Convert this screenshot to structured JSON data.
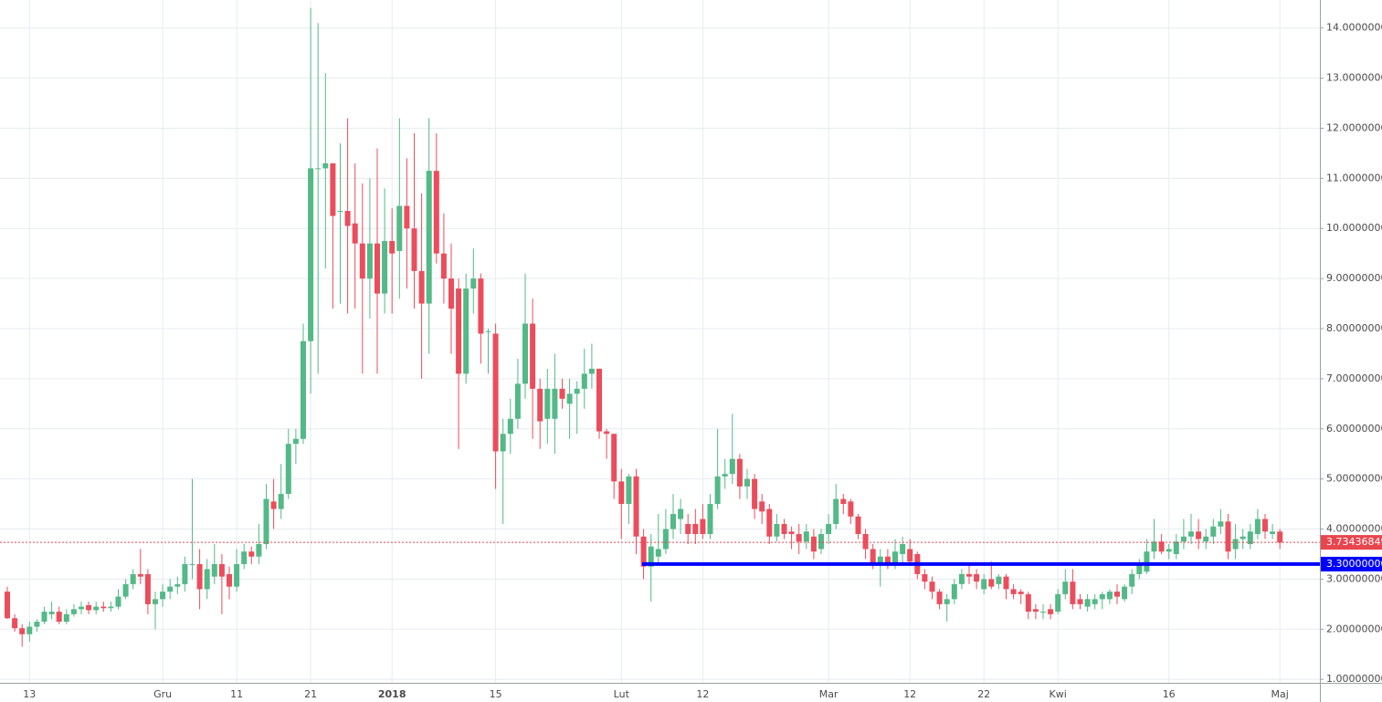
{
  "chart_data": {
    "type": "candlestick",
    "up_color": "#53b987",
    "down_color": "#eb4d5c",
    "grid": true,
    "ylim": [
      0.93,
      14.56
    ],
    "yticks": [
      {
        "value": 1,
        "label": "1.00000000"
      },
      {
        "value": 2,
        "label": "2.00000000"
      },
      {
        "value": 3,
        "label": "3.00000000"
      },
      {
        "value": 4,
        "label": "4.00000000"
      },
      {
        "value": 5,
        "label": "5.00000000"
      },
      {
        "value": 6,
        "label": "6.00000000"
      },
      {
        "value": 7,
        "label": "7.00000000"
      },
      {
        "value": 8,
        "label": "8.00000000"
      },
      {
        "value": 9,
        "label": "9.00000000"
      },
      {
        "value": 10,
        "label": "10.00000000"
      },
      {
        "value": 11,
        "label": "11.00000000"
      },
      {
        "value": 12,
        "label": "12.00000000"
      },
      {
        "value": 13,
        "label": "13.00000000"
      },
      {
        "value": 14,
        "label": "14.00000000"
      }
    ],
    "categories": [
      null,
      null,
      null,
      "13",
      null,
      null,
      null,
      null,
      null,
      null,
      null,
      null,
      null,
      null,
      null,
      null,
      null,
      null,
      null,
      null,
      null,
      "Gru",
      null,
      null,
      null,
      null,
      null,
      null,
      null,
      null,
      null,
      "11",
      null,
      null,
      null,
      null,
      null,
      null,
      null,
      null,
      null,
      "21",
      null,
      null,
      null,
      null,
      null,
      null,
      null,
      null,
      null,
      null,
      "2018",
      null,
      null,
      null,
      null,
      null,
      null,
      null,
      null,
      null,
      null,
      null,
      null,
      null,
      "15",
      null,
      null,
      null,
      null,
      null,
      null,
      null,
      null,
      null,
      null,
      null,
      null,
      null,
      null,
      null,
      null,
      "Lut",
      null,
      null,
      null,
      null,
      null,
      null,
      null,
      null,
      null,
      null,
      "12",
      null,
      null,
      null,
      null,
      null,
      null,
      null,
      null,
      null,
      null,
      null,
      null,
      null,
      null,
      null,
      null,
      "Mar",
      null,
      null,
      null,
      null,
      null,
      null,
      null,
      null,
      null,
      null,
      "12",
      null,
      null,
      null,
      null,
      null,
      null,
      null,
      null,
      null,
      "22",
      null,
      null,
      null,
      null,
      null,
      null,
      null,
      null,
      null,
      "Kwi",
      null,
      null,
      null,
      null,
      null,
      null,
      null,
      null,
      null,
      null,
      null,
      null,
      null,
      null,
      "16",
      null,
      null,
      null,
      null,
      null,
      null,
      null,
      null,
      null,
      null,
      null,
      null,
      null,
      null,
      "Maj"
    ],
    "ohlc": [
      [
        2.75,
        2.85,
        2.2,
        2.22
      ],
      [
        2.22,
        2.3,
        1.95,
        2.02
      ],
      [
        2.02,
        2.1,
        1.65,
        1.9
      ],
      [
        1.9,
        2.15,
        1.75,
        2.05
      ],
      [
        2.05,
        2.2,
        1.95,
        2.15
      ],
      [
        2.15,
        2.45,
        2.1,
        2.35
      ],
      [
        2.3,
        2.55,
        2.2,
        2.35
      ],
      [
        2.35,
        2.45,
        2.1,
        2.15
      ],
      [
        2.15,
        2.4,
        2.1,
        2.3
      ],
      [
        2.3,
        2.5,
        2.25,
        2.4
      ],
      [
        2.4,
        2.55,
        2.3,
        2.45
      ],
      [
        2.48,
        2.55,
        2.3,
        2.38
      ],
      [
        2.38,
        2.55,
        2.3,
        2.45
      ],
      [
        2.45,
        2.55,
        2.35,
        2.42
      ],
      [
        2.42,
        2.55,
        2.35,
        2.45
      ],
      [
        2.45,
        2.8,
        2.4,
        2.65
      ],
      [
        2.65,
        3.0,
        2.6,
        2.9
      ],
      [
        2.9,
        3.2,
        2.8,
        3.1
      ],
      [
        3.1,
        3.6,
        2.9,
        3.05
      ],
      [
        3.1,
        3.2,
        2.3,
        2.5
      ],
      [
        2.5,
        2.75,
        2.0,
        2.6
      ],
      [
        2.6,
        2.9,
        2.45,
        2.75
      ],
      [
        2.75,
        3.0,
        2.6,
        2.85
      ],
      [
        2.85,
        3.05,
        2.7,
        2.9
      ],
      [
        2.9,
        3.45,
        2.75,
        3.3
      ],
      [
        3.3,
        5.0,
        3.0,
        3.3
      ],
      [
        3.3,
        3.6,
        2.4,
        2.8
      ],
      [
        2.8,
        3.4,
        2.6,
        3.2
      ],
      [
        3.05,
        3.7,
        2.9,
        3.3
      ],
      [
        3.3,
        3.5,
        2.3,
        3.05
      ],
      [
        3.1,
        3.25,
        2.6,
        2.85
      ],
      [
        2.85,
        3.6,
        2.75,
        3.3
      ],
      [
        3.3,
        3.7,
        3.2,
        3.55
      ],
      [
        3.55,
        3.65,
        3.3,
        3.45
      ],
      [
        3.45,
        4.1,
        3.3,
        3.7
      ],
      [
        3.7,
        4.9,
        3.6,
        4.6
      ],
      [
        4.55,
        5.0,
        4.0,
        4.4
      ],
      [
        4.4,
        5.3,
        4.2,
        4.7
      ],
      [
        4.7,
        6.0,
        4.6,
        5.7
      ],
      [
        5.7,
        6.0,
        5.3,
        5.8
      ],
      [
        5.8,
        8.1,
        5.7,
        7.75
      ],
      [
        7.75,
        14.4,
        6.7,
        11.2
      ],
      [
        11.2,
        14.1,
        7.1,
        11.2
      ],
      [
        11.2,
        13.1,
        9.2,
        11.3
      ],
      [
        11.3,
        11.3,
        8.4,
        10.25
      ],
      [
        10.35,
        11.7,
        8.5,
        10.35
      ],
      [
        10.35,
        12.2,
        8.3,
        10.05
      ],
      [
        10.1,
        11.3,
        8.4,
        9.7
      ],
      [
        9.7,
        10.9,
        7.1,
        9.0
      ],
      [
        9.0,
        11.0,
        8.2,
        9.7
      ],
      [
        9.7,
        11.6,
        7.1,
        8.7
      ],
      [
        8.7,
        10.8,
        8.3,
        9.75
      ],
      [
        9.75,
        10.4,
        8.3,
        9.5
      ],
      [
        9.55,
        12.2,
        8.6,
        10.45
      ],
      [
        10.45,
        11.4,
        8.8,
        10.0
      ],
      [
        10.0,
        11.9,
        8.4,
        9.15
      ],
      [
        9.15,
        10.7,
        7.0,
        8.5
      ],
      [
        8.5,
        12.2,
        7.5,
        11.15
      ],
      [
        11.15,
        11.9,
        9.3,
        9.5
      ],
      [
        9.5,
        10.3,
        8.5,
        9.0
      ],
      [
        9.0,
        9.7,
        7.5,
        8.4
      ],
      [
        8.8,
        9.0,
        5.6,
        7.1
      ],
      [
        7.1,
        9.1,
        6.9,
        8.8
      ],
      [
        8.8,
        9.6,
        8.3,
        9.0
      ],
      [
        9.0,
        9.1,
        7.3,
        7.9
      ],
      [
        7.95,
        8.0,
        7.1,
        7.95
      ],
      [
        7.9,
        8.1,
        4.8,
        5.55
      ],
      [
        5.55,
        6.2,
        4.1,
        5.9
      ],
      [
        5.9,
        6.6,
        5.5,
        6.2
      ],
      [
        6.2,
        7.4,
        6.0,
        6.9
      ],
      [
        6.9,
        9.1,
        6.6,
        8.1
      ],
      [
        8.1,
        8.6,
        5.8,
        6.8
      ],
      [
        6.8,
        7.0,
        5.6,
        6.15
      ],
      [
        6.2,
        7.2,
        5.7,
        6.8
      ],
      [
        6.2,
        7.5,
        5.5,
        6.8
      ],
      [
        6.8,
        7.0,
        6.4,
        6.6
      ],
      [
        6.5,
        7.0,
        5.8,
        6.7
      ],
      [
        6.7,
        6.95,
        5.9,
        6.8
      ],
      [
        6.8,
        7.6,
        6.4,
        7.1
      ],
      [
        7.1,
        7.7,
        6.8,
        7.2
      ],
      [
        7.2,
        7.2,
        5.8,
        5.95
      ],
      [
        5.95,
        6.0,
        5.4,
        5.9
      ],
      [
        5.9,
        5.9,
        4.6,
        4.95
      ],
      [
        4.95,
        5.2,
        3.8,
        4.5
      ],
      [
        4.5,
        5.1,
        4.1,
        5.05
      ],
      [
        5.05,
        5.2,
        3.5,
        3.85
      ],
      [
        3.85,
        4.0,
        3.0,
        3.25
      ],
      [
        3.25,
        3.9,
        2.55,
        3.65
      ],
      [
        3.45,
        4.3,
        3.3,
        3.6
      ],
      [
        3.6,
        4.4,
        3.5,
        4.0
      ],
      [
        4.0,
        4.7,
        3.8,
        4.3
      ],
      [
        4.2,
        4.6,
        3.9,
        4.4
      ],
      [
        4.1,
        4.3,
        3.7,
        3.9
      ],
      [
        4.1,
        4.4,
        3.7,
        3.9
      ],
      [
        4.2,
        4.5,
        3.8,
        3.9
      ],
      [
        3.9,
        4.7,
        3.8,
        4.5
      ],
      [
        4.5,
        6.0,
        4.4,
        5.05
      ],
      [
        5.05,
        5.4,
        4.8,
        5.1
      ],
      [
        5.1,
        6.3,
        4.9,
        5.4
      ],
      [
        5.4,
        5.5,
        4.6,
        4.85
      ],
      [
        4.85,
        5.2,
        4.6,
        5.0
      ],
      [
        5.0,
        5.1,
        4.2,
        4.4
      ],
      [
        4.55,
        4.7,
        4.1,
        4.35
      ],
      [
        4.4,
        4.5,
        3.7,
        3.85
      ],
      [
        3.85,
        4.3,
        3.75,
        4.1
      ],
      [
        4.1,
        4.2,
        3.8,
        3.9
      ],
      [
        3.95,
        4.05,
        3.6,
        3.9
      ],
      [
        3.9,
        4.1,
        3.5,
        3.75
      ],
      [
        3.75,
        4.1,
        3.6,
        3.95
      ],
      [
        3.85,
        4.0,
        3.4,
        3.55
      ],
      [
        3.6,
        4.0,
        3.5,
        3.9
      ],
      [
        3.9,
        4.3,
        3.7,
        4.1
      ],
      [
        4.1,
        4.9,
        4.0,
        4.6
      ],
      [
        4.6,
        4.7,
        4.3,
        4.5
      ],
      [
        4.55,
        4.6,
        4.1,
        4.25
      ],
      [
        4.25,
        4.3,
        3.8,
        3.9
      ],
      [
        3.9,
        4.0,
        3.4,
        3.6
      ],
      [
        3.6,
        3.7,
        3.2,
        3.3
      ],
      [
        3.3,
        3.6,
        2.85,
        3.45
      ],
      [
        3.45,
        3.6,
        3.2,
        3.3
      ],
      [
        3.3,
        3.8,
        3.2,
        3.55
      ],
      [
        3.5,
        3.85,
        3.3,
        3.7
      ],
      [
        3.6,
        3.8,
        3.3,
        3.35
      ],
      [
        3.5,
        3.55,
        3.0,
        3.1
      ],
      [
        3.1,
        3.2,
        2.8,
        2.95
      ],
      [
        2.95,
        3.05,
        2.6,
        2.75
      ],
      [
        2.75,
        2.8,
        2.4,
        2.5
      ],
      [
        2.5,
        2.7,
        2.15,
        2.6
      ],
      [
        2.6,
        3.0,
        2.5,
        2.9
      ],
      [
        2.9,
        3.2,
        2.8,
        3.1
      ],
      [
        3.1,
        3.3,
        2.9,
        3.05
      ],
      [
        3.1,
        3.2,
        2.8,
        2.95
      ],
      [
        2.8,
        3.1,
        2.7,
        3.0
      ],
      [
        3.0,
        3.35,
        2.8,
        2.85
      ],
      [
        2.9,
        3.1,
        2.8,
        3.05
      ],
      [
        3.05,
        3.1,
        2.6,
        2.8
      ],
      [
        2.8,
        2.9,
        2.6,
        2.7
      ],
      [
        2.75,
        2.8,
        2.5,
        2.7
      ],
      [
        2.7,
        2.75,
        2.2,
        2.35
      ],
      [
        2.4,
        2.5,
        2.2,
        2.35
      ],
      [
        2.35,
        2.5,
        2.2,
        2.35
      ],
      [
        2.4,
        2.5,
        2.2,
        2.3
      ],
      [
        2.35,
        2.8,
        2.3,
        2.7
      ],
      [
        2.7,
        3.2,
        2.6,
        2.95
      ],
      [
        2.95,
        3.2,
        2.4,
        2.5
      ],
      [
        2.6,
        2.7,
        2.4,
        2.5
      ],
      [
        2.45,
        2.7,
        2.35,
        2.6
      ],
      [
        2.5,
        2.7,
        2.4,
        2.6
      ],
      [
        2.6,
        2.75,
        2.4,
        2.7
      ],
      [
        2.6,
        2.8,
        2.5,
        2.75
      ],
      [
        2.75,
        2.9,
        2.5,
        2.65
      ],
      [
        2.6,
        2.9,
        2.55,
        2.85
      ],
      [
        2.85,
        3.2,
        2.7,
        3.1
      ],
      [
        3.1,
        3.4,
        3.0,
        3.3
      ],
      [
        3.15,
        3.8,
        3.1,
        3.55
      ],
      [
        3.55,
        4.2,
        3.4,
        3.75
      ],
      [
        3.75,
        3.9,
        3.5,
        3.55
      ],
      [
        3.55,
        3.7,
        3.4,
        3.6
      ],
      [
        3.5,
        3.9,
        3.4,
        3.75
      ],
      [
        3.75,
        4.2,
        3.6,
        3.85
      ],
      [
        3.85,
        4.3,
        3.7,
        3.95
      ],
      [
        3.95,
        4.2,
        3.6,
        3.8
      ],
      [
        3.75,
        4.0,
        3.6,
        3.85
      ],
      [
        3.85,
        4.2,
        3.7,
        4.05
      ],
      [
        4.05,
        4.4,
        3.9,
        4.15
      ],
      [
        4.15,
        4.3,
        3.4,
        3.55
      ],
      [
        3.6,
        4.1,
        3.4,
        3.8
      ],
      [
        3.8,
        4.0,
        3.6,
        3.85
      ],
      [
        3.7,
        4.1,
        3.6,
        3.95
      ],
      [
        3.9,
        4.4,
        3.8,
        4.2
      ],
      [
        4.2,
        4.3,
        3.8,
        3.95
      ],
      [
        3.9,
        4.1,
        3.8,
        3.95
      ],
      [
        3.95,
        4.0,
        3.6,
        3.73
      ]
    ],
    "lines": [
      {
        "value": 3.73436849,
        "color": "#e8464f"
      },
      {
        "value": 3.3,
        "value_label": "3.30000000",
        "color": "#0000ff"
      }
    ]
  }
}
